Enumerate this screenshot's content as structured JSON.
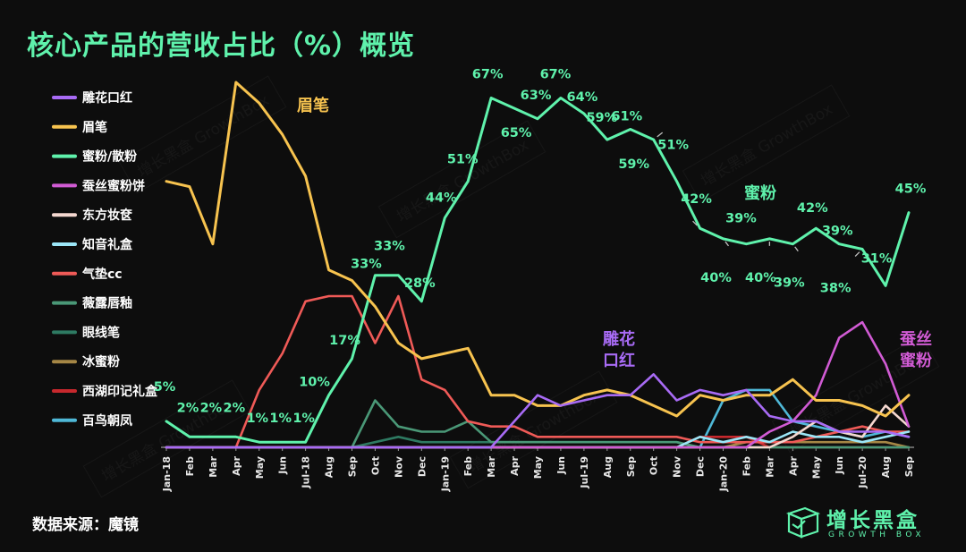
{
  "title": "核心产品的营收占比（%）概览",
  "source": "数据来源：魔镜",
  "logo": {
    "cn": "增长黑盒",
    "en": "GROWTH BOX"
  },
  "watermark": "增长黑盒 GrowthBox",
  "chart_data": {
    "type": "line",
    "title": "核心产品的营收占比（%）概览",
    "xlabel": "",
    "ylabel": "",
    "ylim": [
      0,
      70
    ],
    "grid": false,
    "legend_position": "left",
    "categories": [
      "Jan-18",
      "Feb",
      "Mar",
      "Apr",
      "May",
      "Jun",
      "Jul-18",
      "Aug",
      "Sep",
      "Oct",
      "Nov",
      "Dec",
      "Jan-19",
      "Feb",
      "Mar",
      "Apr",
      "May",
      "Jun",
      "Jul-19",
      "Aug",
      "Sep",
      "Oct",
      "Nov",
      "Dec",
      "Jan-20",
      "Feb",
      "Mar",
      "Apr",
      "May",
      "Jun",
      "Jul-20",
      "Aug",
      "Sep"
    ],
    "series": [
      {
        "name": "雕花口红",
        "color": "#a86bf5",
        "values": [
          0,
          0,
          0,
          0,
          0,
          0,
          0,
          0,
          0,
          0,
          0,
          0,
          0,
          0,
          0,
          5,
          10,
          8,
          9,
          10,
          10,
          14,
          9,
          11,
          10,
          11,
          6,
          5,
          5,
          3,
          3,
          3,
          2
        ]
      },
      {
        "name": "眉笔",
        "color": "#f7c34f",
        "values": [
          51,
          50,
          39,
          70,
          66,
          60,
          52,
          34,
          32,
          27,
          20,
          17,
          18,
          19,
          10,
          10,
          8,
          8,
          10,
          11,
          10,
          8,
          6,
          10,
          9,
          10,
          10,
          13,
          9,
          9,
          8,
          6,
          10
        ]
      },
      {
        "name": "蜜粉/散粉",
        "color": "#5ff2ac",
        "values": [
          5,
          2,
          2,
          2,
          1,
          1,
          1,
          10,
          17,
          33,
          33,
          28,
          44,
          51,
          67,
          65,
          63,
          67,
          64,
          59,
          61,
          59,
          51,
          42,
          40,
          39,
          40,
          39,
          42,
          39,
          38,
          31,
          45
        ]
      },
      {
        "name": "蚕丝蜜粉饼",
        "color": "#d15bd4",
        "values": [
          0,
          0,
          0,
          0,
          0,
          0,
          0,
          0,
          0,
          0,
          0,
          0,
          0,
          0,
          0,
          0,
          0,
          0,
          0,
          0,
          0,
          0,
          0,
          0,
          0,
          0,
          3,
          5,
          10,
          21,
          24,
          16,
          4
        ]
      },
      {
        "name": "东方妆奁",
        "color": "#f5d8d0",
        "values": [
          0,
          0,
          0,
          0,
          0,
          0,
          0,
          0,
          0,
          0,
          0,
          0,
          0,
          0,
          0,
          0,
          0,
          0,
          0,
          0,
          0,
          0,
          0,
          0,
          0,
          0,
          0,
          2,
          5,
          3,
          2,
          8,
          4
        ]
      },
      {
        "name": "知音礼盒",
        "color": "#9be6f7",
        "values": [
          0,
          0,
          0,
          0,
          0,
          0,
          0,
          0,
          0,
          0,
          0,
          0,
          0,
          0,
          0,
          0,
          0,
          0,
          0,
          0,
          0,
          0,
          0,
          2,
          1,
          2,
          1,
          3,
          2,
          2,
          1,
          2,
          3
        ]
      },
      {
        "name": "气垫cc",
        "color": "#ef5a57",
        "values": [
          0,
          0,
          0,
          0,
          11,
          18,
          28,
          29,
          29,
          20,
          29,
          13,
          11,
          5,
          4,
          4,
          2,
          2,
          2,
          2,
          2,
          2,
          2,
          1,
          1,
          1,
          1,
          1,
          2,
          3,
          4,
          3,
          3
        ]
      },
      {
        "name": "薇露唇釉",
        "color": "#4a9877",
        "values": [
          0,
          0,
          0,
          0,
          0,
          0,
          0,
          0,
          0,
          9,
          4,
          3,
          3,
          5,
          1,
          1,
          1,
          1,
          1,
          1,
          1,
          1,
          1,
          0,
          0,
          0,
          0,
          0,
          0,
          0,
          0,
          0,
          0
        ]
      },
      {
        "name": "眼线笔",
        "color": "#2e7a62",
        "values": [
          0,
          0,
          0,
          0,
          0,
          0,
          0,
          0,
          0,
          1,
          2,
          1,
          1,
          1,
          1,
          1,
          1,
          1,
          1,
          1,
          1,
          1,
          1,
          0,
          0,
          0,
          0,
          0,
          0,
          0,
          0,
          0,
          0
        ]
      },
      {
        "name": "冰蜜粉",
        "color": "#a58645",
        "values": [
          0,
          0,
          0,
          0,
          0,
          0,
          0,
          0,
          0,
          0,
          0,
          0,
          0,
          0,
          0,
          0,
          0,
          0,
          0,
          0,
          0,
          0,
          0,
          0,
          0,
          1,
          1,
          1,
          1,
          1,
          1,
          1,
          0
        ]
      },
      {
        "name": "西湖印记礼盒",
        "color": "#c7282d",
        "values": [
          0,
          0,
          0,
          0,
          0,
          0,
          0,
          0,
          0,
          0,
          0,
          0,
          0,
          0,
          0,
          0,
          0,
          0,
          0,
          0,
          0,
          0,
          0,
          2,
          2,
          2,
          0,
          0,
          0,
          0,
          0,
          0,
          0
        ]
      },
      {
        "name": "百鸟朝凤",
        "color": "#4fb8d7",
        "values": [
          0,
          0,
          0,
          0,
          0,
          0,
          0,
          0,
          0,
          0,
          0,
          0,
          0,
          0,
          0,
          0,
          0,
          0,
          0,
          0,
          0,
          0,
          0,
          0,
          9,
          11,
          11,
          5,
          4,
          3,
          2,
          3,
          2
        ]
      }
    ],
    "data_labels": [
      {
        "i": 0,
        "v": 5,
        "t": "5%"
      },
      {
        "i": 1,
        "v": 2,
        "t": "2%"
      },
      {
        "i": 2,
        "v": 2,
        "t": "2%"
      },
      {
        "i": 3,
        "v": 2,
        "t": "2%"
      },
      {
        "i": 4,
        "v": 1,
        "t": "1%"
      },
      {
        "i": 5,
        "v": 1,
        "t": "1%"
      },
      {
        "i": 6,
        "v": 1,
        "t": "1%"
      },
      {
        "i": 7,
        "v": 10,
        "t": "10%"
      },
      {
        "i": 8,
        "v": 17,
        "t": "17%"
      },
      {
        "i": 9,
        "v": 33,
        "t": "33%"
      },
      {
        "i": 10,
        "v": 33,
        "t": "33%"
      },
      {
        "i": 11,
        "v": 28,
        "t": "28%"
      },
      {
        "i": 12,
        "v": 44,
        "t": "44%"
      },
      {
        "i": 13,
        "v": 51,
        "t": "51%"
      },
      {
        "i": 14,
        "v": 67,
        "t": "67%"
      },
      {
        "i": 15,
        "v": 65,
        "t": "65%"
      },
      {
        "i": 16,
        "v": 63,
        "t": "63%"
      },
      {
        "i": 17,
        "v": 67,
        "t": "67%"
      },
      {
        "i": 18,
        "v": 64,
        "t": "64%"
      },
      {
        "i": 19,
        "v": 59,
        "t": "59%"
      },
      {
        "i": 20,
        "v": 61,
        "t": "61%"
      },
      {
        "i": 21,
        "v": 59,
        "t": "59%"
      },
      {
        "i": 22,
        "v": 51,
        "t": "51%"
      },
      {
        "i": 23,
        "v": 42,
        "t": "42%"
      },
      {
        "i": 24,
        "v": 40,
        "t": "40%"
      },
      {
        "i": 25,
        "v": 39,
        "t": "39%"
      },
      {
        "i": 26,
        "v": 40,
        "t": "40%"
      },
      {
        "i": 27,
        "v": 39,
        "t": "39%"
      },
      {
        "i": 28,
        "v": 42,
        "t": "42%"
      },
      {
        "i": 29,
        "v": 39,
        "t": "39%"
      },
      {
        "i": 30,
        "v": 38,
        "t": "38%"
      },
      {
        "i": 31,
        "v": 31,
        "t": "31%"
      },
      {
        "i": 32,
        "v": 45,
        "t": "45%"
      }
    ],
    "annotations": [
      {
        "series": "眉笔",
        "text": "眉笔",
        "color": "#f7c34f"
      },
      {
        "series": "蜜粉/散粉",
        "text": "蜜粉",
        "color": "#5ff2ac"
      },
      {
        "series": "雕花口红",
        "text": "雕花\n口红",
        "color": "#a86bf5"
      },
      {
        "series": "蚕丝蜜粉饼",
        "text": "蚕丝\n蜜粉",
        "color": "#d15bd4"
      }
    ]
  }
}
